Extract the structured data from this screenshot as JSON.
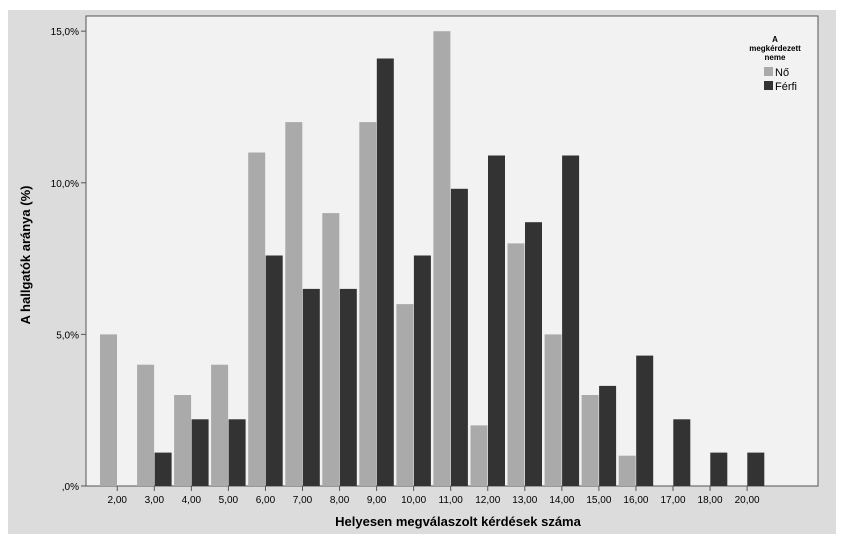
{
  "chart_data": {
    "type": "bar",
    "categories": [
      "2,00",
      "3,00",
      "4,00",
      "5,00",
      "6,00",
      "7,00",
      "8,00",
      "9,00",
      "10,00",
      "11,00",
      "12,00",
      "13,00",
      "14,00",
      "15,00",
      "16,00",
      "17,00",
      "18,00",
      "20,00"
    ],
    "series": [
      {
        "name": "Nő",
        "color": "#aaaaaa",
        "values": [
          5.0,
          4.0,
          3.0,
          4.0,
          11.0,
          12.0,
          9.0,
          12.0,
          6.0,
          15.0,
          2.0,
          8.0,
          5.0,
          3.0,
          1.0,
          0,
          0,
          0
        ]
      },
      {
        "name": "Férfi",
        "color": "#333333",
        "values": [
          0,
          1.1,
          2.2,
          2.2,
          7.6,
          6.5,
          6.5,
          14.1,
          7.6,
          9.8,
          10.9,
          8.7,
          10.9,
          3.3,
          4.3,
          2.2,
          1.1,
          1.1
        ]
      }
    ],
    "xlabel": "Helyesen megválaszolt kérdések száma",
    "ylabel": "A hallgatók aránya (%)",
    "ylim": [
      0,
      15.5
    ],
    "yticks": [
      0,
      5,
      10,
      15
    ],
    "ytick_labels": [
      ",0%",
      "5,0%",
      "10,0%",
      "15,0%"
    ],
    "legend": {
      "title_lines": [
        "A",
        "megkérdezett",
        "neme"
      ],
      "placement": "top-right"
    },
    "grid": false
  }
}
